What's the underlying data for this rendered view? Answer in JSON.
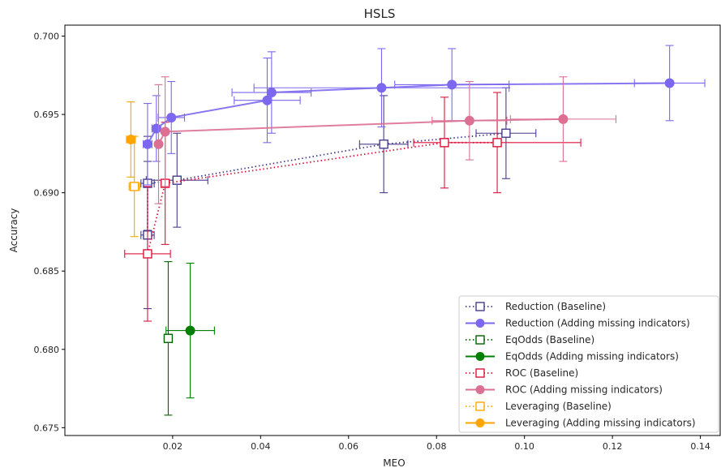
{
  "chart_data": {
    "type": "scatter",
    "title": "HSLS",
    "xlabel": "MEO",
    "ylabel": "Accuracy",
    "xlim": [
      -0.0045,
      0.1445
    ],
    "ylim": [
      0.6745,
      0.7007
    ],
    "xticks": [
      0.02,
      0.04,
      0.06,
      0.08,
      0.1,
      0.12,
      0.14
    ],
    "xtick_labels": [
      "0.02",
      "0.04",
      "0.06",
      "0.08",
      "0.10",
      "0.12",
      "0.14"
    ],
    "yticks": [
      0.675,
      0.68,
      0.685,
      0.69,
      0.695,
      0.7
    ],
    "ytick_labels": [
      "0.675",
      "0.680",
      "0.685",
      "0.690",
      "0.695",
      "0.700"
    ],
    "grid": false,
    "legend_position": "bottom-right",
    "series": [
      {
        "name": "Reduction (Baseline)",
        "color": "#483d8b",
        "marker": "square-open",
        "line": "dotted",
        "points": [
          {
            "x": 0.0143,
            "y": 0.6873,
            "xerr": 0.0015,
            "yerr": 0.0047
          },
          {
            "x": 0.0143,
            "y": 0.6906,
            "xerr": 0.0015,
            "yerr": 0.003
          },
          {
            "x": 0.021,
            "y": 0.6908,
            "xerr": 0.007,
            "yerr": 0.003
          },
          {
            "x": 0.068,
            "y": 0.6931,
            "xerr": 0.0055,
            "yerr": 0.0031
          },
          {
            "x": 0.0958,
            "y": 0.6938,
            "xerr": 0.0068,
            "yerr": 0.0029
          }
        ]
      },
      {
        "name": "Reduction (Adding missing indicators)",
        "color": "#7b68ee",
        "marker": "circle",
        "line": "solid",
        "points": [
          {
            "x": 0.0143,
            "y": 0.6931,
            "xerr": 0.001,
            "yerr": 0.0026
          },
          {
            "x": 0.0163,
            "y": 0.6941,
            "xerr": 0.001,
            "yerr": 0.0021
          },
          {
            "x": 0.0197,
            "y": 0.6948,
            "xerr": 0.003,
            "yerr": 0.0023
          },
          {
            "x": 0.0415,
            "y": 0.6959,
            "xerr": 0.0075,
            "yerr": 0.0027
          },
          {
            "x": 0.0425,
            "y": 0.6964,
            "xerr": 0.009,
            "yerr": 0.0026
          },
          {
            "x": 0.0675,
            "y": 0.6967,
            "xerr": 0.029,
            "yerr": 0.0025
          },
          {
            "x": 0.0835,
            "y": 0.6969,
            "xerr": 0.013,
            "yerr": 0.0023
          },
          {
            "x": 0.133,
            "y": 0.697,
            "xerr": 0.008,
            "yerr": 0.0024
          }
        ]
      },
      {
        "name": "EqOdds (Baseline)",
        "color": "#006400",
        "marker": "square-open",
        "line": "dotted",
        "points": [
          {
            "x": 0.019,
            "y": 0.6807,
            "xerr": 0.0,
            "yerr": 0.0049
          }
        ]
      },
      {
        "name": "EqOdds (Adding missing indicators)",
        "color": "#008000",
        "marker": "circle",
        "line": "solid",
        "points": [
          {
            "x": 0.024,
            "y": 0.6812,
            "xerr": 0.0055,
            "yerr": 0.0043
          }
        ]
      },
      {
        "name": "ROC (Baseline)",
        "color": "#dc143c",
        "marker": "square-open",
        "line": "dotted",
        "points": [
          {
            "x": 0.0143,
            "y": 0.6861,
            "xerr": 0.0052,
            "yerr": 0.0043
          },
          {
            "x": 0.0183,
            "y": 0.6906,
            "xerr": 0.0005,
            "yerr": 0.0039
          },
          {
            "x": 0.0818,
            "y": 0.6932,
            "xerr": 0.0,
            "yerr": 0.0029
          },
          {
            "x": 0.0938,
            "y": 0.6932,
            "xerr": 0.019,
            "yerr": 0.0032
          }
        ]
      },
      {
        "name": "ROC (Adding missing indicators)",
        "color": "#db7093",
        "marker": "circle",
        "line": "solid",
        "points": [
          {
            "x": 0.0168,
            "y": 0.6931,
            "xerr": 0.0005,
            "yerr": 0.0038
          },
          {
            "x": 0.0183,
            "y": 0.6939,
            "xerr": 0.0005,
            "yerr": 0.0035
          },
          {
            "x": 0.0875,
            "y": 0.6946,
            "xerr": 0.0085,
            "yerr": 0.0025
          },
          {
            "x": 0.1088,
            "y": 0.6947,
            "xerr": 0.012,
            "yerr": 0.0027
          }
        ]
      },
      {
        "name": "Leveraging (Baseline)",
        "color": "#ffa500",
        "marker": "square-open",
        "line": "dotted",
        "points": [
          {
            "x": 0.0113,
            "y": 0.6904,
            "xerr": 0.0012,
            "yerr": 0.0032
          }
        ]
      },
      {
        "name": "Leveraging (Adding missing indicators)",
        "color": "#ffa500",
        "marker": "circle",
        "line": "solid",
        "points": [
          {
            "x": 0.0105,
            "y": 0.6934,
            "xerr": 0.001,
            "yerr": 0.0024
          }
        ]
      }
    ]
  }
}
